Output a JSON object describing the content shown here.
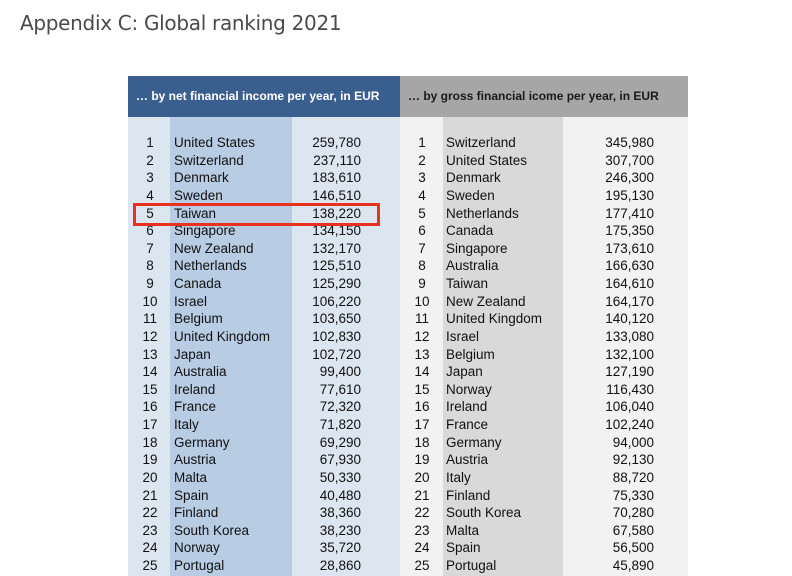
{
  "title": "Appendix C: Global ranking 2021",
  "colors": {
    "net_header": "#3a5f8f",
    "gross_header": "#a6a6a6",
    "highlight": "#e8321e"
  },
  "net": {
    "header": "…  by net financial income per year, in EUR",
    "rows": [
      {
        "rank": "1",
        "country": "United States",
        "value": "259,780"
      },
      {
        "rank": "2",
        "country": "Switzerland",
        "value": "237,110"
      },
      {
        "rank": "3",
        "country": "Denmark",
        "value": "183,610"
      },
      {
        "rank": "4",
        "country": "Sweden",
        "value": "146,510"
      },
      {
        "rank": "5",
        "country": "Taiwan",
        "value": "138,220"
      },
      {
        "rank": "6",
        "country": "Singapore",
        "value": "134,150"
      },
      {
        "rank": "7",
        "country": "New Zealand",
        "value": "132,170"
      },
      {
        "rank": "8",
        "country": "Netherlands",
        "value": "125,510"
      },
      {
        "rank": "9",
        "country": "Canada",
        "value": "125,290"
      },
      {
        "rank": "10",
        "country": "Israel",
        "value": "106,220"
      },
      {
        "rank": "11",
        "country": "Belgium",
        "value": "103,650"
      },
      {
        "rank": "12",
        "country": "United Kingdom",
        "value": "102,830"
      },
      {
        "rank": "13",
        "country": "Japan",
        "value": "102,720"
      },
      {
        "rank": "14",
        "country": "Australia",
        "value": "99,400"
      },
      {
        "rank": "15",
        "country": "Ireland",
        "value": "77,610"
      },
      {
        "rank": "16",
        "country": "France",
        "value": "72,320"
      },
      {
        "rank": "17",
        "country": "Italy",
        "value": "71,820"
      },
      {
        "rank": "18",
        "country": "Germany",
        "value": "69,290"
      },
      {
        "rank": "19",
        "country": "Austria",
        "value": "67,930"
      },
      {
        "rank": "20",
        "country": "Malta",
        "value": "50,330"
      },
      {
        "rank": "21",
        "country": "Spain",
        "value": "40,480"
      },
      {
        "rank": "22",
        "country": "Finland",
        "value": "38,360"
      },
      {
        "rank": "23",
        "country": "South Korea",
        "value": "38,230"
      },
      {
        "rank": "24",
        "country": "Norway",
        "value": "35,720"
      },
      {
        "rank": "25",
        "country": "Portugal",
        "value": "28,860"
      }
    ]
  },
  "gross": {
    "header": "…  by gross financial icome per year, in EUR",
    "rows": [
      {
        "rank": "1",
        "country": "Switzerland",
        "value": "345,980"
      },
      {
        "rank": "2",
        "country": "United States",
        "value": "307,700"
      },
      {
        "rank": "3",
        "country": "Denmark",
        "value": "246,300"
      },
      {
        "rank": "4",
        "country": "Sweden",
        "value": "195,130"
      },
      {
        "rank": "5",
        "country": "Netherlands",
        "value": "177,410"
      },
      {
        "rank": "6",
        "country": "Canada",
        "value": "175,350"
      },
      {
        "rank": "7",
        "country": "Singapore",
        "value": "173,610"
      },
      {
        "rank": "8",
        "country": "Australia",
        "value": "166,630"
      },
      {
        "rank": "9",
        "country": "Taiwan",
        "value": "164,610"
      },
      {
        "rank": "10",
        "country": "New Zealand",
        "value": "164,170"
      },
      {
        "rank": "11",
        "country": "United Kingdom",
        "value": "140,120"
      },
      {
        "rank": "12",
        "country": "Israel",
        "value": "133,080"
      },
      {
        "rank": "13",
        "country": "Belgium",
        "value": "132,100"
      },
      {
        "rank": "14",
        "country": "Japan",
        "value": "127,190"
      },
      {
        "rank": "15",
        "country": "Norway",
        "value": "116,430"
      },
      {
        "rank": "16",
        "country": "Ireland",
        "value": "106,040"
      },
      {
        "rank": "17",
        "country": "France",
        "value": "102,240"
      },
      {
        "rank": "18",
        "country": "Germany",
        "value": "94,000"
      },
      {
        "rank": "19",
        "country": "Austria",
        "value": "92,130"
      },
      {
        "rank": "20",
        "country": "Italy",
        "value": "88,720"
      },
      {
        "rank": "21",
        "country": "Finland",
        "value": "75,330"
      },
      {
        "rank": "22",
        "country": "South Korea",
        "value": "70,280"
      },
      {
        "rank": "23",
        "country": "Malta",
        "value": "67,580"
      },
      {
        "rank": "24",
        "country": "Spain",
        "value": "56,500"
      },
      {
        "rank": "25",
        "country": "Portugal",
        "value": "45,890"
      }
    ]
  }
}
